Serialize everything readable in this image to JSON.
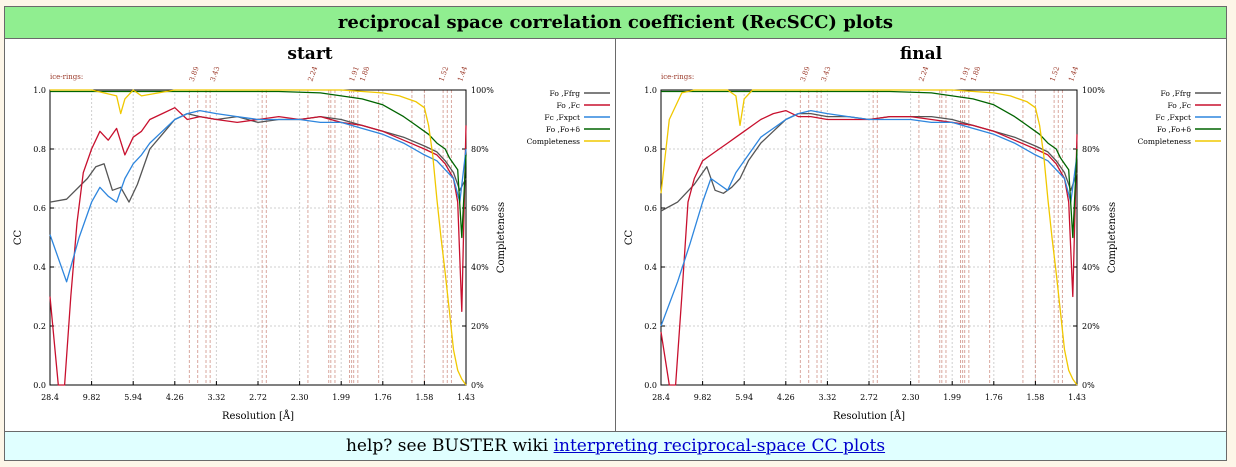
{
  "header": {
    "title": "reciprocal space correlation coefficient (RecSCC) plots"
  },
  "help": {
    "prefix": "help? see BUSTER wiki",
    "link_text": "interpreting reciprocal-space CC plots"
  },
  "colors": {
    "fo_ffrg": "#555555",
    "fo_fc": "#c8102e",
    "fc_fxpct": "#2e86de",
    "fo_fod": "#006400",
    "completeness": "#f0c800",
    "ice": "#cd8a7e"
  },
  "chart_data": [
    {
      "type": "line",
      "title": "start",
      "xlabel": "Resolution [Å]",
      "ylabel": "CC",
      "y2label": "Completeness",
      "x_tick_labels": [
        "28.4",
        "9.82",
        "5.94",
        "4.26",
        "3.32",
        "2.72",
        "2.30",
        "1.99",
        "1.76",
        "1.58",
        "1.43"
      ],
      "y_ticks": [
        "0.0",
        "0.2",
        "0.4",
        "0.6",
        "0.8",
        "1.0"
      ],
      "y2_ticks": [
        "0%",
        "20%",
        "40%",
        "60%",
        "80%",
        "100%"
      ],
      "ylim": [
        0,
        1
      ],
      "ice_rings_label": "ice-rings:",
      "ice_ring_labels": [
        "3.89",
        "3.43",
        "2.24",
        "1.91",
        "1.88",
        "1.52",
        "1.44"
      ],
      "legend": [
        "Fo ,Ffrg",
        "Fo ,Fc",
        "Fc ,Fxpct",
        "Fo ,Fo+δ",
        "Completeness"
      ],
      "series": [
        {
          "name": "Fo ,Ffrg",
          "color_key": "fo_ffrg",
          "x": [
            0,
            0.04,
            0.09,
            0.11,
            0.13,
            0.15,
            0.17,
            0.19,
            0.21,
            0.24,
            0.27,
            0.3,
            0.33,
            0.36,
            0.4,
            0.45,
            0.5,
            0.55,
            0.6,
            0.65,
            0.7,
            0.75,
            0.8,
            0.85,
            0.9,
            0.93,
            0.95,
            0.97,
            0.985,
            1.0
          ],
          "y": [
            0.62,
            0.63,
            0.7,
            0.74,
            0.75,
            0.66,
            0.67,
            0.62,
            0.68,
            0.8,
            0.85,
            0.9,
            0.92,
            0.91,
            0.9,
            0.91,
            0.89,
            0.9,
            0.9,
            0.91,
            0.9,
            0.88,
            0.86,
            0.84,
            0.81,
            0.79,
            0.76,
            0.72,
            0.66,
            0.7
          ]
        },
        {
          "name": "Fo ,Fc",
          "color_key": "fo_fc",
          "x": [
            0,
            0.02,
            0.035,
            0.05,
            0.065,
            0.08,
            0.1,
            0.12,
            0.14,
            0.16,
            0.18,
            0.2,
            0.22,
            0.24,
            0.27,
            0.3,
            0.33,
            0.36,
            0.4,
            0.45,
            0.5,
            0.55,
            0.6,
            0.65,
            0.7,
            0.75,
            0.8,
            0.85,
            0.9,
            0.93,
            0.95,
            0.97,
            0.98,
            0.99,
            1.0
          ],
          "y": [
            0.3,
            0.0,
            0.0,
            0.3,
            0.55,
            0.72,
            0.8,
            0.86,
            0.83,
            0.87,
            0.78,
            0.84,
            0.86,
            0.9,
            0.92,
            0.94,
            0.9,
            0.91,
            0.9,
            0.89,
            0.9,
            0.91,
            0.9,
            0.91,
            0.89,
            0.88,
            0.86,
            0.83,
            0.8,
            0.78,
            0.75,
            0.7,
            0.62,
            0.25,
            0.88
          ]
        },
        {
          "name": "Fc ,Fxpct",
          "color_key": "fc_fxpct",
          "x": [
            0,
            0.04,
            0.07,
            0.1,
            0.12,
            0.14,
            0.16,
            0.18,
            0.2,
            0.22,
            0.24,
            0.27,
            0.3,
            0.33,
            0.36,
            0.4,
            0.45,
            0.5,
            0.55,
            0.6,
            0.65,
            0.7,
            0.75,
            0.8,
            0.85,
            0.9,
            0.93,
            0.95,
            0.97,
            0.985,
            1.0
          ],
          "y": [
            0.51,
            0.35,
            0.5,
            0.62,
            0.67,
            0.64,
            0.62,
            0.7,
            0.75,
            0.78,
            0.82,
            0.86,
            0.9,
            0.92,
            0.93,
            0.92,
            0.91,
            0.9,
            0.9,
            0.9,
            0.89,
            0.89,
            0.87,
            0.85,
            0.82,
            0.78,
            0.76,
            0.73,
            0.7,
            0.62,
            0.8
          ]
        },
        {
          "name": "Fo ,Fo+δ",
          "color_key": "fo_fod",
          "x": [
            0,
            0.2,
            0.4,
            0.55,
            0.65,
            0.7,
            0.75,
            0.8,
            0.85,
            0.88,
            0.91,
            0.93,
            0.95,
            0.96,
            0.97,
            0.98,
            0.99,
            1.0
          ],
          "y": [
            0.995,
            0.995,
            0.995,
            0.995,
            0.99,
            0.98,
            0.97,
            0.95,
            0.91,
            0.88,
            0.85,
            0.82,
            0.8,
            0.77,
            0.75,
            0.73,
            0.5,
            0.78
          ]
        },
        {
          "name": "Completeness",
          "color_key": "completeness",
          "axis": "right",
          "x": [
            0,
            0.1,
            0.16,
            0.17,
            0.18,
            0.2,
            0.22,
            0.3,
            0.5,
            0.7,
            0.8,
            0.84,
            0.86,
            0.88,
            0.9,
            0.91,
            0.92,
            0.93,
            0.94,
            0.95,
            0.96,
            0.97,
            0.98,
            0.99,
            1.0
          ],
          "y": [
            1.0,
            1.0,
            0.98,
            0.92,
            0.97,
            1.0,
            0.98,
            1.0,
            1.0,
            1.0,
            0.99,
            0.98,
            0.97,
            0.96,
            0.94,
            0.88,
            0.78,
            0.63,
            0.5,
            0.38,
            0.25,
            0.12,
            0.05,
            0.02,
            0.0
          ]
        }
      ]
    },
    {
      "type": "line",
      "title": "final",
      "xlabel": "Resolution [Å]",
      "ylabel": "CC",
      "y2label": "Completeness",
      "x_tick_labels": [
        "28.4",
        "9.82",
        "5.94",
        "4.26",
        "3.32",
        "2.72",
        "2.30",
        "1.99",
        "1.76",
        "1.58",
        "1.43"
      ],
      "y_ticks": [
        "0.0",
        "0.2",
        "0.4",
        "0.6",
        "0.8",
        "1.0"
      ],
      "y2_ticks": [
        "0%",
        "20%",
        "40%",
        "60%",
        "80%",
        "100%"
      ],
      "ylim": [
        0,
        1
      ],
      "ice_rings_label": "ice-rings:",
      "ice_ring_labels": [
        "3.89",
        "3.43",
        "2.24",
        "1.91",
        "1.88",
        "1.52",
        "1.44"
      ],
      "legend": [
        "Fo ,Ffrg",
        "Fo ,Fc",
        "Fc ,Fxpct",
        "Fo ,Fo+δ",
        "Completeness"
      ],
      "series": [
        {
          "name": "Fo ,Ffrg",
          "color_key": "fo_ffrg",
          "x": [
            0,
            0.04,
            0.08,
            0.11,
            0.13,
            0.15,
            0.17,
            0.19,
            0.21,
            0.24,
            0.27,
            0.3,
            0.33,
            0.36,
            0.4,
            0.45,
            0.5,
            0.55,
            0.6,
            0.65,
            0.7,
            0.75,
            0.8,
            0.85,
            0.9,
            0.93,
            0.95,
            0.97,
            0.985,
            1.0
          ],
          "y": [
            0.59,
            0.62,
            0.68,
            0.74,
            0.66,
            0.65,
            0.67,
            0.7,
            0.76,
            0.82,
            0.86,
            0.9,
            0.92,
            0.92,
            0.91,
            0.91,
            0.9,
            0.91,
            0.91,
            0.91,
            0.9,
            0.88,
            0.86,
            0.84,
            0.81,
            0.79,
            0.76,
            0.72,
            0.66,
            0.72
          ]
        },
        {
          "name": "Fo ,Fc",
          "color_key": "fo_fc",
          "x": [
            0,
            0.02,
            0.035,
            0.05,
            0.065,
            0.08,
            0.1,
            0.12,
            0.14,
            0.16,
            0.18,
            0.2,
            0.22,
            0.24,
            0.27,
            0.3,
            0.33,
            0.36,
            0.4,
            0.45,
            0.5,
            0.55,
            0.6,
            0.65,
            0.7,
            0.75,
            0.8,
            0.85,
            0.9,
            0.93,
            0.95,
            0.97,
            0.98,
            0.99,
            1.0
          ],
          "y": [
            0.18,
            0.0,
            0.0,
            0.3,
            0.62,
            0.7,
            0.76,
            0.78,
            0.8,
            0.82,
            0.84,
            0.86,
            0.88,
            0.9,
            0.92,
            0.93,
            0.91,
            0.91,
            0.9,
            0.9,
            0.9,
            0.91,
            0.91,
            0.9,
            0.89,
            0.88,
            0.86,
            0.83,
            0.8,
            0.78,
            0.75,
            0.7,
            0.62,
            0.3,
            0.85
          ]
        },
        {
          "name": "Fc ,Fxpct",
          "color_key": "fc_fxpct",
          "x": [
            0,
            0.04,
            0.07,
            0.1,
            0.12,
            0.14,
            0.16,
            0.18,
            0.2,
            0.22,
            0.24,
            0.27,
            0.3,
            0.33,
            0.36,
            0.4,
            0.45,
            0.5,
            0.55,
            0.6,
            0.65,
            0.7,
            0.75,
            0.8,
            0.85,
            0.9,
            0.93,
            0.95,
            0.97,
            0.985,
            1.0
          ],
          "y": [
            0.2,
            0.35,
            0.48,
            0.62,
            0.7,
            0.68,
            0.66,
            0.72,
            0.76,
            0.8,
            0.84,
            0.87,
            0.9,
            0.92,
            0.93,
            0.92,
            0.91,
            0.9,
            0.9,
            0.9,
            0.89,
            0.89,
            0.87,
            0.85,
            0.82,
            0.78,
            0.76,
            0.73,
            0.7,
            0.62,
            0.78
          ]
        },
        {
          "name": "Fo ,Fo+δ",
          "color_key": "fo_fod",
          "x": [
            0,
            0.2,
            0.4,
            0.55,
            0.65,
            0.7,
            0.75,
            0.8,
            0.85,
            0.88,
            0.91,
            0.93,
            0.95,
            0.96,
            0.97,
            0.98,
            0.99,
            1.0
          ],
          "y": [
            0.995,
            0.995,
            0.995,
            0.995,
            0.99,
            0.98,
            0.97,
            0.95,
            0.91,
            0.88,
            0.85,
            0.82,
            0.8,
            0.77,
            0.75,
            0.73,
            0.5,
            0.8
          ]
        },
        {
          "name": "Completeness",
          "color_key": "completeness",
          "axis": "right",
          "x": [
            0,
            0.02,
            0.05,
            0.08,
            0.1,
            0.16,
            0.18,
            0.19,
            0.2,
            0.22,
            0.3,
            0.5,
            0.7,
            0.8,
            0.84,
            0.86,
            0.88,
            0.9,
            0.91,
            0.92,
            0.93,
            0.94,
            0.95,
            0.96,
            0.97,
            0.98,
            0.99,
            1.0
          ],
          "y": [
            0.65,
            0.9,
            0.99,
            1.0,
            1.0,
            1.0,
            0.98,
            0.88,
            0.97,
            1.0,
            1.0,
            1.0,
            1.0,
            0.99,
            0.98,
            0.97,
            0.96,
            0.94,
            0.88,
            0.78,
            0.63,
            0.5,
            0.38,
            0.25,
            0.12,
            0.05,
            0.02,
            0.0
          ]
        }
      ]
    }
  ]
}
